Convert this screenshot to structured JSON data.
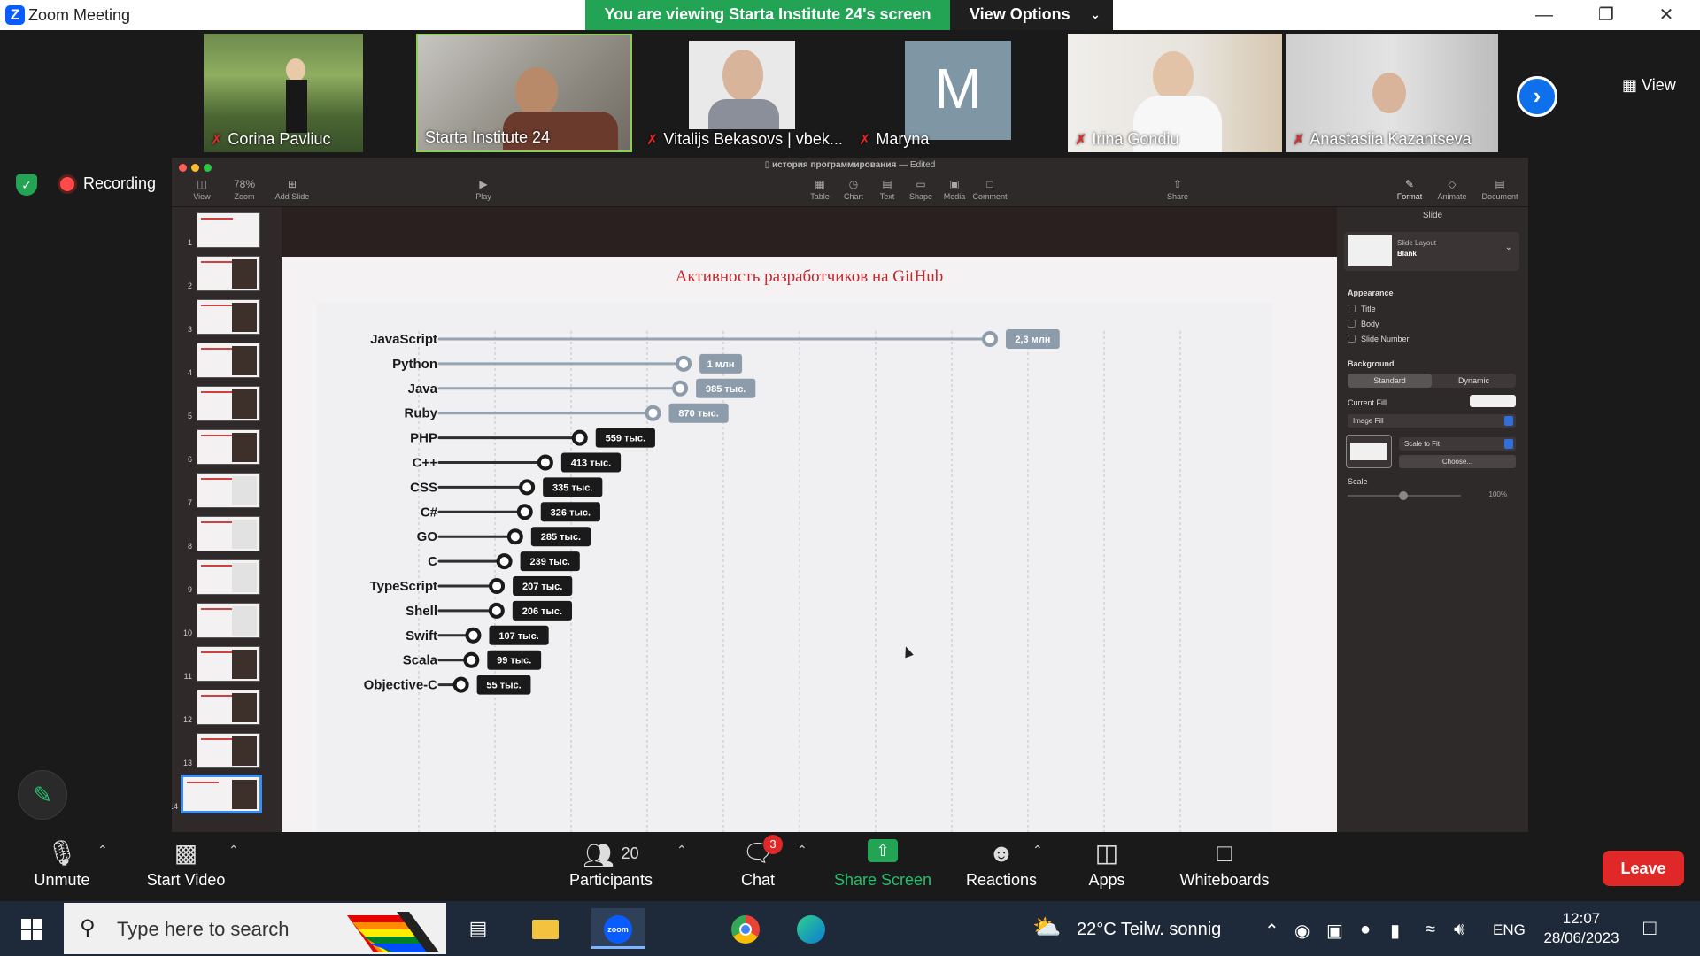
{
  "app": {
    "title": "Zoom Meeting"
  },
  "banner": {
    "text": "You are viewing Starta Institute 24's screen",
    "view_options": "View Options"
  },
  "gallery": {
    "participants": [
      {
        "name": "Corina Pavliuc",
        "muted": true
      },
      {
        "name": "Starta Institute 24",
        "muted": false,
        "active_speaker": true
      },
      {
        "name": "Vitalijs Bekasovs | vbek...",
        "muted": true
      },
      {
        "name": "Maryna",
        "muted": true,
        "avatar_letter": "M"
      },
      {
        "name": "Irina Gondiu",
        "muted": true
      },
      {
        "name": "Anastasiia Kazantseva",
        "muted": true
      }
    ],
    "view_label": "View"
  },
  "status": {
    "recording": "Recording"
  },
  "keynote": {
    "document_title": "история программирования",
    "edited": "— Edited",
    "toolbar_left": [
      {
        "label": "View",
        "icon": "sidebar-icon"
      },
      {
        "label": "Zoom",
        "icon": "zoom-icon",
        "value": "78%"
      },
      {
        "label": "Add Slide",
        "icon": "plus-icon"
      }
    ],
    "play_label": "Play",
    "toolbar_center": [
      "Table",
      "Chart",
      "Text",
      "Shape",
      "Media",
      "Comment"
    ],
    "share_label": "Share",
    "toolbar_right": [
      "Format",
      "Animate",
      "Document"
    ],
    "slide_numbers": [
      "1",
      "2",
      "3",
      "4",
      "5",
      "6",
      "7",
      "8",
      "9",
      "10",
      "11",
      "12",
      "13",
      "14"
    ],
    "inspector": {
      "header": "Slide",
      "layout_label": "Slide Layout",
      "layout_value": "Blank",
      "appearance_label": "Appearance",
      "appearance_items": [
        "Title",
        "Body",
        "Slide Number"
      ],
      "background_label": "Background",
      "bg_standard": "Standard",
      "bg_dynamic": "Dynamic",
      "current_fill_label": "Current Fill",
      "fill_type": "Image Fill",
      "scale_mode": "Scale to Fit",
      "choose_label": "Choose...",
      "scale_label": "Scale",
      "scale_value": "100%"
    }
  },
  "chart_data": {
    "type": "bar",
    "title": "Активность разработчиков на GitHub",
    "categories": [
      "JavaScript",
      "Python",
      "Java",
      "Ruby",
      "PHP",
      "C++",
      "CSS",
      "C#",
      "GO",
      "C",
      "TypeScript",
      "Shell",
      "Swift",
      "Scala",
      "Objective-C"
    ],
    "values": [
      2300000,
      1000000,
      985000,
      870000,
      559000,
      413000,
      335000,
      326000,
      285000,
      239000,
      207000,
      206000,
      107000,
      99000,
      55000
    ],
    "labels": [
      "2,3 млн",
      "1 млн",
      "985 тыс.",
      "870 тыс.",
      "559 тыс.",
      "413 тыс.",
      "335 тыс.",
      "326 тыс.",
      "285 тыс.",
      "239 тыс.",
      "207 тыс.",
      "206 тыс.",
      "107 тыс.",
      "99 тыс.",
      "55 тыс."
    ],
    "highlight_color": "#1a1a1a",
    "muted_color": "#8d9cab",
    "xlabel": "",
    "ylabel": ""
  },
  "toolbar": {
    "unmute": "Unmute",
    "start_video": "Start Video",
    "participants_count": "20",
    "participants": "Participants",
    "chat": "Chat",
    "chat_badge": "3",
    "share_screen": "Share Screen",
    "reactions": "Reactions",
    "apps": "Apps",
    "whiteboards": "Whiteboards",
    "leave": "Leave"
  },
  "taskbar": {
    "search_placeholder": "Type here to search",
    "weather": "22°C  Teilw. sonnig",
    "language": "ENG",
    "time": "12:07",
    "date": "28/06/2023"
  }
}
